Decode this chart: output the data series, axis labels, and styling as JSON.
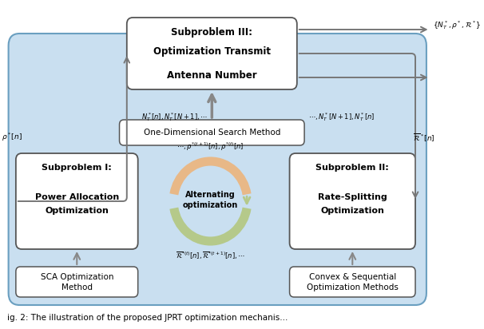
{
  "bg_color": "#d4e6f1",
  "box_color": "#ffffff",
  "arrow_color": "#808080",
  "title": "Subproblem III:\nOptimization Transmit\nAntenna Number",
  "sub1_title": "Subproblem I:\n\nPower Allocation\nOptimization",
  "sub2_title": "Subproblem II:\n\nRate-Splitting\nOptimization",
  "one_dim": "One-Dimensional Search Method",
  "sca": "SCA Optimization\nMethod",
  "convex": "Convex & Sequential\nOptimization Methods",
  "alt_opt": "Alternating\noptimization",
  "label_NT_left": "$N_T^*[n], N_T^*[N+1], \\cdots$",
  "label_NT_right": "$\\cdots, N_T^*[N+1], N_T^*[n]$",
  "label_rho_left": "$\\rho^*[n]$",
  "label_R_right": "$\\overline{\\mathcal{R}}^*[n]$",
  "label_top_right": "$\\{N_T^*, \\rho^*, \\mathcal{R}^*\\}$",
  "label_circle_top": "$\\cdots, \\rho^{*(t+1)}[n], \\rho^{*(t)}[n]$",
  "label_circle_bot": "$\\overline{\\mathcal{R}}^{*(t)}[n], \\overline{\\mathcal{R}}^{*(t+1)}[n], \\cdots$",
  "caption": "ig. 2: The illustration of the proposed JPRT optimization mechanis..."
}
